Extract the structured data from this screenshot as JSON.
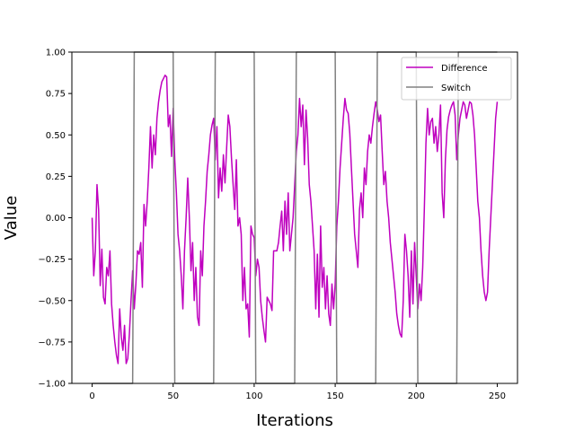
{
  "chart_data": {
    "type": "line",
    "xlabel": "Iterations",
    "ylabel": "Value",
    "xlim": [
      -12.5,
      262.5
    ],
    "ylim": [
      -1.0,
      1.0
    ],
    "x_ticks": [
      0,
      50,
      100,
      150,
      200,
      250
    ],
    "y_ticks": [
      -1.0,
      -0.75,
      -0.5,
      -0.25,
      0.0,
      0.25,
      0.5,
      0.75,
      1.0
    ],
    "x_tick_labels": [
      "0",
      "50",
      "100",
      "150",
      "200",
      "250"
    ],
    "y_tick_labels": [
      "−1.00",
      "−0.75",
      "−0.50",
      "−0.25",
      "0.00",
      "0.25",
      "0.50",
      "0.75",
      "1.00"
    ],
    "grid": false,
    "legend_position": "top-right",
    "series": [
      {
        "name": "Difference",
        "color": "#bf00bf",
        "points": [
          [
            0,
            0.0
          ],
          [
            1,
            -0.35
          ],
          [
            2,
            -0.2
          ],
          [
            3,
            0.2
          ],
          [
            4,
            0.05
          ],
          [
            5,
            -0.41
          ],
          [
            6,
            -0.19
          ],
          [
            7,
            -0.48
          ],
          [
            8,
            -0.52
          ],
          [
            9,
            -0.3
          ],
          [
            10,
            -0.35
          ],
          [
            11,
            -0.2
          ],
          [
            12,
            -0.52
          ],
          [
            13,
            -0.65
          ],
          [
            14,
            -0.75
          ],
          [
            15,
            -0.83
          ],
          [
            16,
            -0.88
          ],
          [
            17,
            -0.55
          ],
          [
            18,
            -0.72
          ],
          [
            19,
            -0.8
          ],
          [
            20,
            -0.65
          ],
          [
            21,
            -0.88
          ],
          [
            22,
            -0.85
          ],
          [
            23,
            -0.7
          ],
          [
            24,
            -0.5
          ],
          [
            25,
            -0.32
          ],
          [
            26,
            -0.55
          ],
          [
            27,
            -0.4
          ],
          [
            28,
            -0.2
          ],
          [
            29,
            -0.22
          ],
          [
            30,
            -0.15
          ],
          [
            31,
            -0.42
          ],
          [
            32,
            0.08
          ],
          [
            33,
            -0.05
          ],
          [
            34,
            0.1
          ],
          [
            35,
            0.3
          ],
          [
            36,
            0.55
          ],
          [
            37,
            0.3
          ],
          [
            38,
            0.5
          ],
          [
            39,
            0.38
          ],
          [
            40,
            0.6
          ],
          [
            41,
            0.7
          ],
          [
            42,
            0.77
          ],
          [
            43,
            0.82
          ],
          [
            44,
            0.84
          ],
          [
            45,
            0.86
          ],
          [
            46,
            0.85
          ],
          [
            47,
            0.55
          ],
          [
            48,
            0.62
          ],
          [
            49,
            0.37
          ],
          [
            50,
            0.66
          ],
          [
            51,
            0.35
          ],
          [
            52,
            0.15
          ],
          [
            53,
            -0.1
          ],
          [
            54,
            -0.2
          ],
          [
            55,
            -0.35
          ],
          [
            56,
            -0.55
          ],
          [
            57,
            -0.2
          ],
          [
            58,
            0.0
          ],
          [
            59,
            0.24
          ],
          [
            60,
            0.0
          ],
          [
            61,
            -0.32
          ],
          [
            62,
            -0.15
          ],
          [
            63,
            -0.5
          ],
          [
            64,
            -0.3
          ],
          [
            65,
            -0.6
          ],
          [
            66,
            -0.65
          ],
          [
            67,
            -0.2
          ],
          [
            68,
            -0.35
          ],
          [
            69,
            -0.05
          ],
          [
            70,
            0.1
          ],
          [
            71,
            0.28
          ],
          [
            72,
            0.38
          ],
          [
            73,
            0.5
          ],
          [
            74,
            0.56
          ],
          [
            75,
            0.6
          ],
          [
            76,
            0.35
          ],
          [
            77,
            0.55
          ],
          [
            78,
            0.12
          ],
          [
            79,
            0.3
          ],
          [
            80,
            0.16
          ],
          [
            81,
            0.38
          ],
          [
            82,
            0.21
          ],
          [
            83,
            0.42
          ],
          [
            84,
            0.62
          ],
          [
            85,
            0.55
          ],
          [
            86,
            0.36
          ],
          [
            87,
            0.2
          ],
          [
            88,
            0.05
          ],
          [
            89,
            0.35
          ],
          [
            90,
            -0.05
          ],
          [
            91,
            0.0
          ],
          [
            92,
            -0.1
          ],
          [
            93,
            -0.5
          ],
          [
            94,
            -0.3
          ],
          [
            95,
            -0.55
          ],
          [
            96,
            -0.52
          ],
          [
            97,
            -0.72
          ],
          [
            98,
            -0.05
          ],
          [
            99,
            -0.1
          ],
          [
            100,
            -0.12
          ],
          [
            101,
            -0.35
          ],
          [
            102,
            -0.25
          ],
          [
            103,
            -0.3
          ],
          [
            104,
            -0.5
          ],
          [
            105,
            -0.6
          ],
          [
            106,
            -0.68
          ],
          [
            107,
            -0.75
          ],
          [
            108,
            -0.48
          ],
          [
            109,
            -0.5
          ],
          [
            110,
            -0.52
          ],
          [
            111,
            -0.56
          ],
          [
            112,
            -0.2
          ],
          [
            113,
            -0.2
          ],
          [
            114,
            -0.2
          ],
          [
            115,
            -0.15
          ],
          [
            116,
            -0.05
          ],
          [
            117,
            0.04
          ],
          [
            118,
            -0.2
          ],
          [
            119,
            0.1
          ],
          [
            120,
            -0.1
          ],
          [
            121,
            0.15
          ],
          [
            122,
            -0.2
          ],
          [
            123,
            -0.1
          ],
          [
            124,
            0.0
          ],
          [
            125,
            0.2
          ],
          [
            126,
            0.4
          ],
          [
            127,
            0.5
          ],
          [
            128,
            0.72
          ],
          [
            129,
            0.55
          ],
          [
            130,
            0.68
          ],
          [
            131,
            0.32
          ],
          [
            132,
            0.65
          ],
          [
            133,
            0.48
          ],
          [
            134,
            0.2
          ],
          [
            135,
            0.1
          ],
          [
            136,
            -0.05
          ],
          [
            137,
            -0.2
          ],
          [
            138,
            -0.55
          ],
          [
            139,
            -0.22
          ],
          [
            140,
            -0.6
          ],
          [
            141,
            -0.05
          ],
          [
            142,
            -0.42
          ],
          [
            143,
            -0.3
          ],
          [
            144,
            -0.55
          ],
          [
            145,
            -0.35
          ],
          [
            146,
            -0.58
          ],
          [
            147,
            -0.65
          ],
          [
            148,
            -0.4
          ],
          [
            149,
            -0.55
          ],
          [
            150,
            -0.4
          ],
          [
            151,
            -0.05
          ],
          [
            152,
            0.1
          ],
          [
            153,
            0.3
          ],
          [
            154,
            0.45
          ],
          [
            155,
            0.6
          ],
          [
            156,
            0.72
          ],
          [
            157,
            0.65
          ],
          [
            158,
            0.63
          ],
          [
            159,
            0.51
          ],
          [
            160,
            0.3
          ],
          [
            161,
            0.1
          ],
          [
            162,
            -0.1
          ],
          [
            163,
            -0.2
          ],
          [
            164,
            -0.3
          ],
          [
            165,
            0.05
          ],
          [
            166,
            0.15
          ],
          [
            167,
            0.0
          ],
          [
            168,
            0.3
          ],
          [
            169,
            0.2
          ],
          [
            170,
            0.4
          ],
          [
            171,
            0.5
          ],
          [
            172,
            0.45
          ],
          [
            173,
            0.55
          ],
          [
            174,
            0.63
          ],
          [
            175,
            0.7
          ],
          [
            176,
            0.65
          ],
          [
            177,
            0.58
          ],
          [
            178,
            0.62
          ],
          [
            179,
            0.4
          ],
          [
            180,
            0.2
          ],
          [
            181,
            0.28
          ],
          [
            182,
            0.1
          ],
          [
            183,
            0.0
          ],
          [
            184,
            -0.15
          ],
          [
            185,
            -0.25
          ],
          [
            186,
            -0.35
          ],
          [
            187,
            -0.45
          ],
          [
            188,
            -0.58
          ],
          [
            189,
            -0.65
          ],
          [
            190,
            -0.7
          ],
          [
            191,
            -0.72
          ],
          [
            192,
            -0.5
          ],
          [
            193,
            -0.1
          ],
          [
            194,
            -0.2
          ],
          [
            195,
            -0.35
          ],
          [
            196,
            -0.6
          ],
          [
            197,
            -0.2
          ],
          [
            198,
            -0.52
          ],
          [
            199,
            -0.15
          ],
          [
            200,
            -0.35
          ],
          [
            201,
            -0.55
          ],
          [
            202,
            -0.4
          ],
          [
            203,
            -0.5
          ],
          [
            204,
            -0.3
          ],
          [
            205,
            0.05
          ],
          [
            206,
            0.45
          ],
          [
            207,
            0.66
          ],
          [
            208,
            0.5
          ],
          [
            209,
            0.58
          ],
          [
            210,
            0.6
          ],
          [
            211,
            0.45
          ],
          [
            212,
            0.55
          ],
          [
            213,
            0.4
          ],
          [
            214,
            0.5
          ],
          [
            215,
            0.68
          ],
          [
            216,
            0.15
          ],
          [
            217,
            0.0
          ],
          [
            218,
            0.35
          ],
          [
            219,
            0.53
          ],
          [
            220,
            0.61
          ],
          [
            221,
            0.65
          ],
          [
            222,
            0.68
          ],
          [
            223,
            0.7
          ],
          [
            224,
            0.62
          ],
          [
            225,
            0.35
          ],
          [
            226,
            0.5
          ],
          [
            227,
            0.6
          ],
          [
            228,
            0.65
          ],
          [
            229,
            0.7
          ],
          [
            230,
            0.68
          ],
          [
            231,
            0.6
          ],
          [
            232,
            0.65
          ],
          [
            233,
            0.7
          ],
          [
            234,
            0.69
          ],
          [
            235,
            0.62
          ],
          [
            236,
            0.5
          ],
          [
            237,
            0.3
          ],
          [
            238,
            0.1
          ],
          [
            239,
            0.0
          ],
          [
            240,
            -0.2
          ],
          [
            241,
            -0.35
          ],
          [
            242,
            -0.45
          ],
          [
            243,
            -0.5
          ],
          [
            244,
            -0.45
          ],
          [
            245,
            -0.2
          ],
          [
            246,
            0.0
          ],
          [
            247,
            0.2
          ],
          [
            248,
            0.4
          ],
          [
            249,
            0.6
          ],
          [
            250,
            0.7
          ]
        ]
      },
      {
        "name": "Switch",
        "color": "#808080",
        "points": [
          [
            0,
            -1.0
          ],
          [
            25,
            -1.0
          ],
          [
            26,
            1.0
          ],
          [
            50,
            1.0
          ],
          [
            51,
            -1.0
          ],
          [
            75,
            -1.0
          ],
          [
            76,
            1.0
          ],
          [
            100,
            1.0
          ],
          [
            101,
            -1.0
          ],
          [
            125,
            -1.0
          ],
          [
            126,
            1.0
          ],
          [
            150,
            1.0
          ],
          [
            151,
            -1.0
          ],
          [
            175,
            -1.0
          ],
          [
            176,
            1.0
          ],
          [
            200,
            1.0
          ],
          [
            201,
            -1.0
          ],
          [
            225,
            -1.0
          ],
          [
            226,
            1.0
          ],
          [
            250,
            1.0
          ]
        ]
      }
    ]
  }
}
